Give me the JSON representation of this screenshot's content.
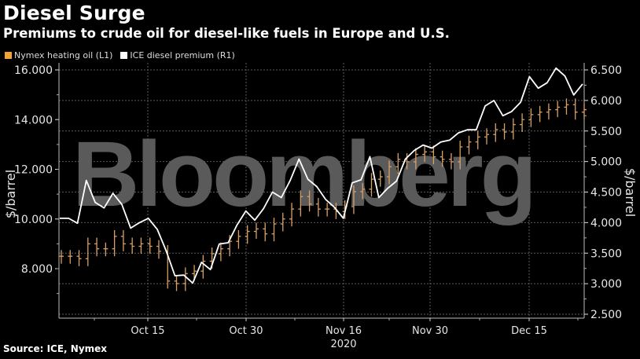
{
  "header": {
    "title": "Diesel Surge",
    "subtitle": "Premiums to crude oil for diesel-like fuels in Europe and U.S."
  },
  "legend": [
    {
      "label": "Nymex heating oil (L1)",
      "color": "#f4a33c"
    },
    {
      "label": "ICE diesel premium (R1)",
      "color": "#ffffff"
    }
  ],
  "footer": {
    "source": "Source: ICE, Nymex"
  },
  "watermark": "Bloomberg",
  "colors": {
    "background": "#000000",
    "heating_oil": "#e0a060",
    "diesel": "#ffffff",
    "grid": "#555555",
    "watermark": "#5a5a5a"
  },
  "chart_data": {
    "type": "line",
    "title": "Diesel Surge",
    "subtitle": "Premiums to crude oil for diesel-like fuels in Europe and U.S.",
    "xlabel": "2020",
    "x_ticks": [
      "Oct 15",
      "Oct 30",
      "Nov 16",
      "Nov 30",
      "Dec 15"
    ],
    "x_year_label": "2020",
    "left_axis": {
      "label": "$/barrel",
      "ticks": [
        "16.000",
        "14.000",
        "12.000",
        "10.000",
        "8.000"
      ],
      "ylim": [
        6.0,
        16.0
      ]
    },
    "right_axis": {
      "label": "$/barrel",
      "ticks": [
        "6.500",
        "6.000",
        "5.500",
        "5.000",
        "4.500",
        "4.000",
        "3.500",
        "3.000",
        "2.500"
      ],
      "ylim": [
        2.5,
        6.5
      ]
    },
    "legend_position": "top-left",
    "grid": true,
    "series": [
      {
        "name": "ICE diesel premium (R1)",
        "axis": "right",
        "style": "line",
        "color": "#ffffff",
        "values": [
          4.07,
          4.07,
          3.99,
          4.69,
          4.33,
          4.24,
          4.48,
          4.3,
          3.91,
          4.0,
          4.07,
          3.89,
          3.54,
          3.13,
          3.14,
          3.01,
          3.35,
          3.23,
          3.65,
          3.67,
          3.96,
          4.19,
          4.04,
          4.23,
          4.5,
          4.41,
          4.69,
          5.04,
          4.71,
          4.59,
          4.38,
          4.25,
          4.07,
          4.65,
          4.7,
          5.08,
          4.41,
          4.56,
          4.68,
          5.04,
          5.18,
          5.27,
          5.22,
          5.32,
          5.35,
          5.47,
          5.52,
          5.52,
          5.91,
          6.0,
          5.75,
          5.82,
          5.97,
          6.39,
          6.2,
          6.29,
          6.53,
          6.4,
          6.09,
          6.27
        ]
      },
      {
        "name": "Nymex heating oil (L1)",
        "axis": "left",
        "style": "ohlc",
        "color": "#e0a060",
        "approx_close_values": [
          8.5,
          8.5,
          8.4,
          9.0,
          8.8,
          8.8,
          9.3,
          9.0,
          8.9,
          9.0,
          8.9,
          8.7,
          7.5,
          7.4,
          7.8,
          7.9,
          8.3,
          8.6,
          8.8,
          9.1,
          9.3,
          9.5,
          9.6,
          9.4,
          9.8,
          10.0,
          10.4,
          10.9,
          10.6,
          10.4,
          10.4,
          10.3,
          10.5,
          11.1,
          11.2,
          11.6,
          11.7,
          12.1,
          12.4,
          12.3,
          12.6,
          12.7,
          12.5,
          12.4,
          12.3,
          12.9,
          13.1,
          13.3,
          13.4,
          13.6,
          13.5,
          13.8,
          14.0,
          14.2,
          14.3,
          14.4,
          14.5,
          14.6,
          14.3,
          14.4
        ]
      }
    ]
  }
}
